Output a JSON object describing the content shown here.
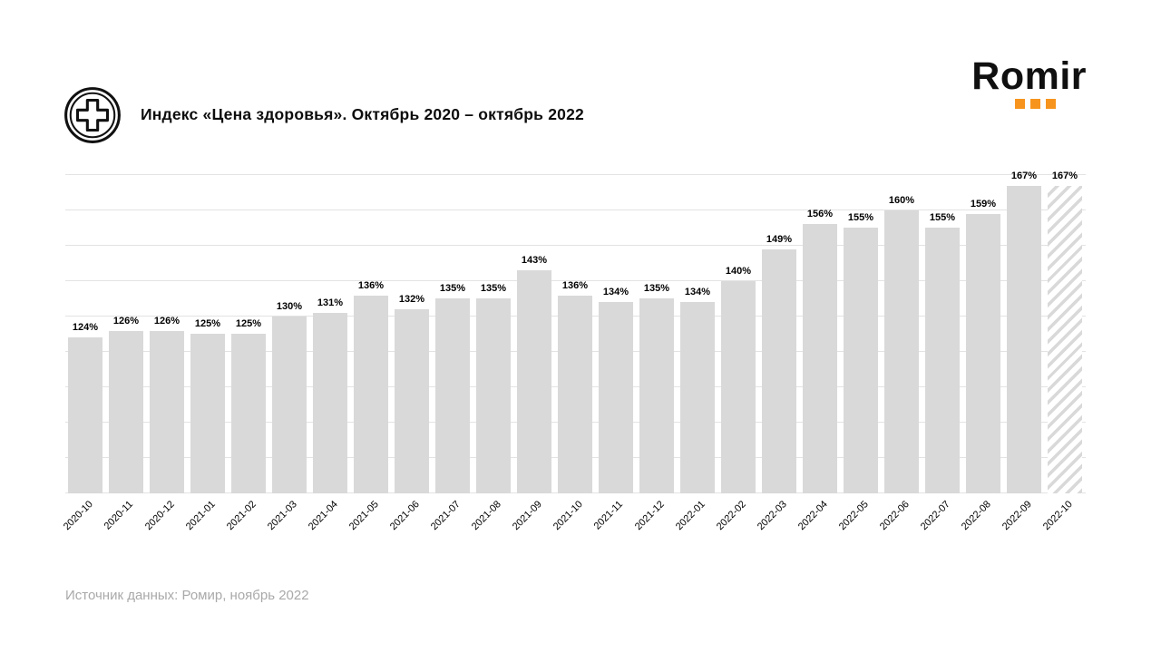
{
  "header": {
    "title": "Индекс «Цена здоровья». Октябрь 2020 – октябрь 2022",
    "icon": "medical-cross-badge-icon"
  },
  "logo": {
    "text": "Romir",
    "dots": 3,
    "accent_color": "#F7941D"
  },
  "source": {
    "text": "Источник данных: Ромир, ноябрь 2022"
  },
  "colors": {
    "bar_fill": "#D9D9D9",
    "gridline": "#E3E3E3",
    "value_label": "#000000",
    "source_text": "#A9A9A9",
    "accent": "#F7941D"
  },
  "chart_data": {
    "type": "bar",
    "title": "Индекс «Цена здоровья». Октябрь 2020 – октябрь 2022",
    "xlabel": "",
    "ylabel": "",
    "categories": [
      "2020-10",
      "2020-11",
      "2020-12",
      "2021-01",
      "2021-02",
      "2021-03",
      "2021-04",
      "2021-05",
      "2021-06",
      "2021-07",
      "2021-08",
      "2021-09",
      "2021-10",
      "2021-11",
      "2021-12",
      "2022-01",
      "2022-02",
      "2022-03",
      "2022-04",
      "2022-05",
      "2022-06",
      "2022-07",
      "2022-08",
      "2022-09",
      "2022-10"
    ],
    "values": [
      124,
      126,
      126,
      125,
      125,
      130,
      131,
      136,
      132,
      135,
      135,
      143,
      136,
      134,
      135,
      134,
      140,
      149,
      156,
      155,
      160,
      155,
      159,
      167,
      167
    ],
    "value_suffix": "%",
    "ylim": [
      80,
      172
    ],
    "gridline_values": [
      80,
      90,
      100,
      110,
      120,
      130,
      140,
      150,
      160,
      170
    ],
    "y_axis_labels_visible": false,
    "grid": true,
    "legend": "none",
    "hatched_last_bar": true,
    "hatched_last_note": "last bar (2022-10) drawn with diagonal hatching"
  }
}
